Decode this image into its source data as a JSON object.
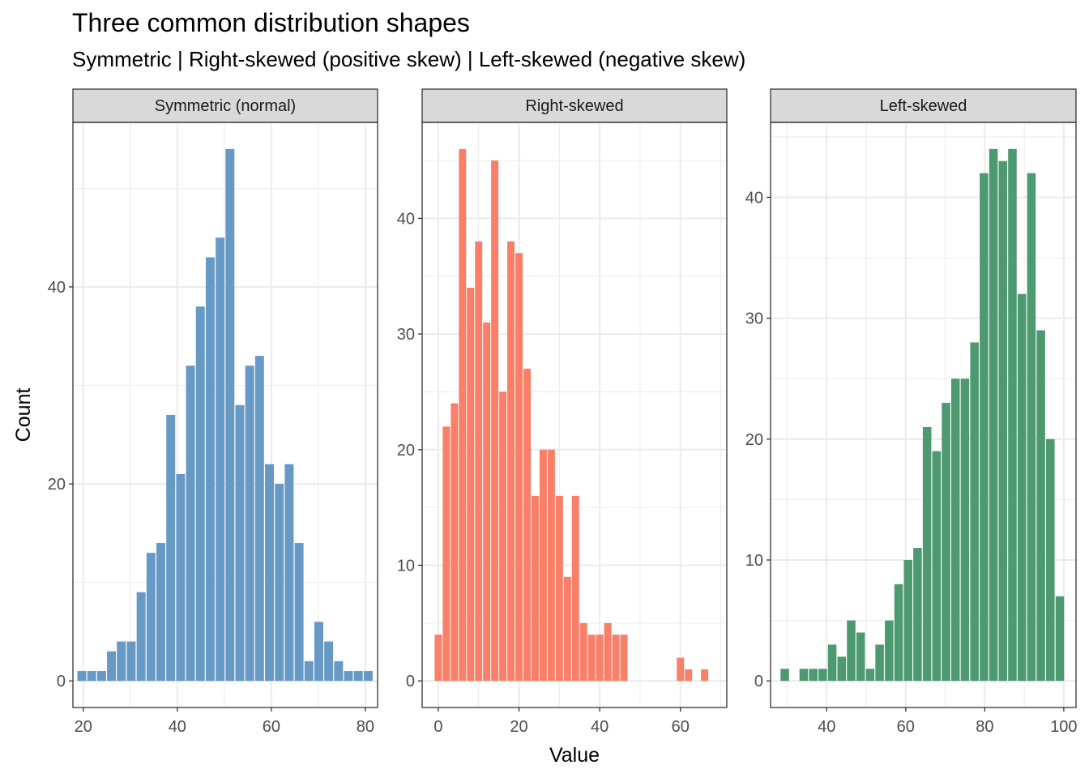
{
  "chart_data": {
    "type": "bar",
    "title": "Three common distribution shapes",
    "subtitle": "Symmetric | Right-skewed (positive skew) | Left-skewed (negative skew)",
    "xlabel": "Value",
    "ylabel": "Count",
    "colors": {
      "strip_bg": "#d9d9d9",
      "grid": "#ebebeb",
      "border": "#333333",
      "tick_text": "#4d4d4d"
    },
    "panels": [
      {
        "name": "symmetric",
        "strip": "Symmetric (normal)",
        "color": "#6699c4",
        "bin_width": 2.1,
        "xlim": [
          17.8,
          82.6
        ],
        "ylim": [
          -2.7,
          56.7
        ],
        "xbreaks": [
          20,
          40,
          60,
          80
        ],
        "ybreaks": [
          0,
          20,
          40
        ],
        "x": [
          19.7,
          21.8,
          23.9,
          26.0,
          28.1,
          30.2,
          32.3,
          34.4,
          36.5,
          38.6,
          40.7,
          42.8,
          44.9,
          47.0,
          49.1,
          51.2,
          53.3,
          55.4,
          57.5,
          59.6,
          61.7,
          63.8,
          65.9,
          68.0,
          70.1,
          72.2,
          74.3,
          76.4,
          78.5,
          80.6
        ],
        "values": [
          1,
          1,
          1,
          3,
          4,
          4,
          9,
          13,
          14,
          27,
          21,
          32,
          38,
          43,
          45,
          54,
          28,
          32,
          33,
          22,
          20,
          22,
          14,
          2,
          6,
          4,
          2,
          1,
          1,
          1
        ]
      },
      {
        "name": "right-skewed",
        "strip": "Right-skewed",
        "color": "#fa7f68",
        "bin_width": 2.0,
        "xlim": [
          -4.0,
          71.5
        ],
        "ylim": [
          -2.3,
          48.3
        ],
        "xbreaks": [
          0,
          20,
          40,
          60
        ],
        "ybreaks": [
          0,
          10,
          20,
          30,
          40
        ],
        "x": [
          0,
          2,
          4,
          6,
          8,
          10,
          12,
          14,
          16,
          18,
          20,
          22,
          24,
          26,
          28,
          30,
          32,
          34,
          36,
          38,
          40,
          42,
          44,
          46,
          48,
          50,
          52,
          54,
          56,
          58,
          60,
          62,
          64,
          66
        ],
        "values": [
          4,
          22,
          24,
          46,
          34,
          38,
          31,
          45,
          25,
          38,
          37,
          27,
          16,
          20,
          20,
          16,
          9,
          16,
          5,
          4,
          4,
          5,
          4,
          4,
          0,
          0,
          0,
          0,
          0,
          0,
          2,
          1,
          0,
          1
        ]
      },
      {
        "name": "left-skewed",
        "strip": "Left-skewed",
        "color": "#4d9970",
        "bin_width": 2.4,
        "xlim": [
          25.8,
          103.1
        ],
        "ylim": [
          -2.2,
          46.2
        ],
        "xbreaks": [
          40,
          60,
          80,
          100
        ],
        "ybreaks": [
          0,
          10,
          20,
          30,
          40
        ],
        "x": [
          29.4,
          31.8,
          34.2,
          36.6,
          39.0,
          41.4,
          43.8,
          46.2,
          48.6,
          51.0,
          53.4,
          55.8,
          58.2,
          60.6,
          63.0,
          65.4,
          67.8,
          70.2,
          72.6,
          75.0,
          77.4,
          79.8,
          82.2,
          84.6,
          87.0,
          89.4,
          91.8,
          94.2,
          96.6,
          99.0
        ],
        "values": [
          1,
          0,
          1,
          1,
          1,
          3,
          2,
          5,
          4,
          1,
          3,
          5,
          8,
          10,
          11,
          21,
          19,
          23,
          25,
          25,
          28,
          42,
          44,
          43,
          44,
          32,
          42,
          29,
          20,
          7
        ]
      }
    ]
  }
}
